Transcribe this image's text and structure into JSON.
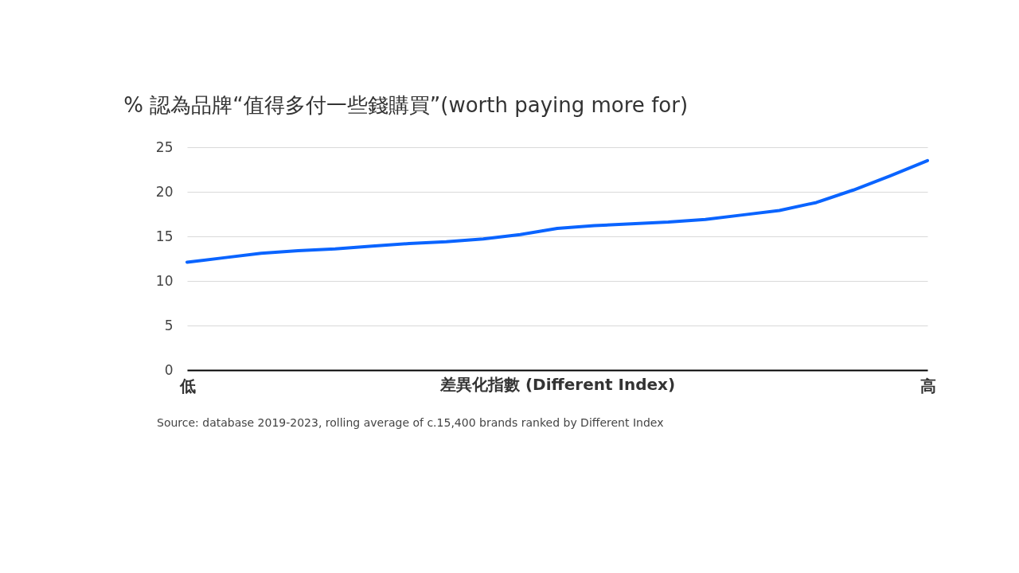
{
  "chart_data": {
    "type": "line",
    "title": "% 認為品牌“值得多付一些錢購買”(worth paying more for)",
    "xlabel": "差異化指數 (Different Index)",
    "categories": [
      "低",
      null,
      null,
      null,
      null,
      null,
      null,
      null,
      null,
      null,
      null,
      null,
      null,
      null,
      null,
      null,
      null,
      null,
      null,
      null,
      "高"
    ],
    "series": [
      {
        "color": "#0a64ff",
        "values": [
          12.1,
          12.6,
          13.1,
          13.4,
          13.6,
          13.9,
          14.2,
          14.4,
          14.7,
          15.2,
          15.9,
          16.2,
          16.4,
          16.6,
          16.9,
          17.4,
          17.9,
          18.8,
          20.2,
          21.8,
          23.5
        ]
      }
    ],
    "ylim": [
      0,
      25
    ],
    "yticks": [
      0,
      5,
      10,
      15,
      20,
      25
    ],
    "grid": "y",
    "legend": false,
    "marker": "none",
    "line_style": "solid",
    "annotations": [
      "Source: database 2019-2023, rolling average of c.15,400 brands ranked by Different Index"
    ]
  }
}
